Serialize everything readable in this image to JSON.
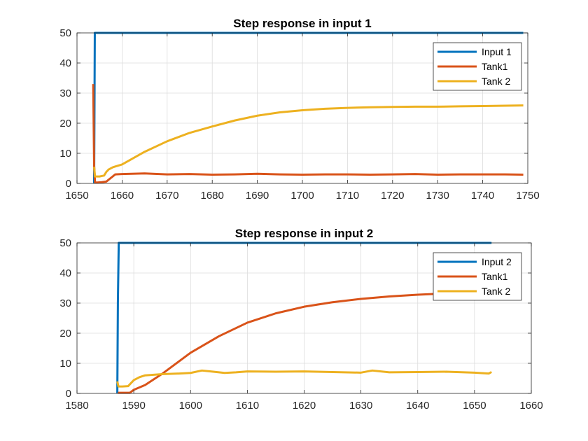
{
  "chart_data": [
    {
      "type": "line",
      "title": "Step response in input 1",
      "xlim": [
        1650,
        1750
      ],
      "ylim": [
        0,
        50
      ],
      "xticks": [
        1650,
        1660,
        1670,
        1680,
        1690,
        1700,
        1710,
        1720,
        1730,
        1740,
        1750
      ],
      "yticks": [
        0,
        10,
        20,
        30,
        40,
        50
      ],
      "grid": true,
      "legend_position": "top-right",
      "series": [
        {
          "name": "Input 1",
          "color": "#0072BD",
          "x": [
            1653.8,
            1653.9,
            1653.95,
            1749
          ],
          "y": [
            0,
            33,
            50,
            50
          ]
        },
        {
          "name": "Tank1",
          "color": "#D95319",
          "x": [
            1653.6,
            1653.8,
            1654.0,
            1654.5,
            1655.5,
            1656.5,
            1657.5,
            1658.5,
            1660,
            1665,
            1670,
            1675,
            1680,
            1685,
            1690,
            1695,
            1700,
            1705,
            1710,
            1715,
            1720,
            1725,
            1730,
            1735,
            1740,
            1745,
            1749
          ],
          "y": [
            33,
            6,
            0.3,
            0.3,
            0.4,
            0.6,
            1.8,
            3,
            3.1,
            3.3,
            3.0,
            3.1,
            2.9,
            3.0,
            3.2,
            3.0,
            2.9,
            3.0,
            3.0,
            2.9,
            3.0,
            3.1,
            2.9,
            3.0,
            3.0,
            3.0,
            2.9
          ]
        },
        {
          "name": "Tank 2",
          "color": "#EDB120",
          "x": [
            1653.8,
            1654.0,
            1655,
            1656,
            1656.5,
            1657,
            1658,
            1660,
            1665,
            1670,
            1675,
            1680,
            1685,
            1690,
            1695,
            1700,
            1705,
            1710,
            1715,
            1720,
            1725,
            1730,
            1735,
            1740,
            1745,
            1749
          ],
          "y": [
            5.5,
            2.3,
            2.3,
            2.6,
            3.8,
            4.6,
            5.4,
            6.3,
            10.5,
            14.0,
            16.8,
            18.9,
            20.9,
            22.5,
            23.6,
            24.3,
            24.8,
            25.1,
            25.3,
            25.4,
            25.5,
            25.5,
            25.6,
            25.7,
            25.8,
            25.9
          ]
        }
      ]
    },
    {
      "type": "line",
      "title": "Step response in input 2",
      "xlim": [
        1580,
        1660
      ],
      "ylim": [
        0,
        50
      ],
      "xticks": [
        1580,
        1590,
        1600,
        1610,
        1620,
        1630,
        1640,
        1650,
        1660
      ],
      "yticks": [
        0,
        10,
        20,
        30,
        40,
        50
      ],
      "grid": true,
      "legend_position": "top-right",
      "series": [
        {
          "name": "Input 2",
          "color": "#0072BD",
          "x": [
            1587.1,
            1587.2,
            1587.35,
            1653
          ],
          "y": [
            0,
            30,
            50,
            50
          ]
        },
        {
          "name": "Tank1",
          "color": "#D95319",
          "x": [
            1587.2,
            1589.3,
            1590,
            1592,
            1595,
            1600,
            1605,
            1610,
            1615,
            1620,
            1625,
            1630,
            1635,
            1640,
            1645,
            1650,
            1653
          ],
          "y": [
            0.2,
            0.2,
            1.2,
            2.8,
            6.5,
            13.5,
            19.0,
            23.5,
            26.6,
            28.8,
            30.3,
            31.4,
            32.2,
            32.8,
            33.2,
            33.6,
            33.8
          ]
        },
        {
          "name": "Tank 2",
          "color": "#EDB120",
          "x": [
            1587.1,
            1587.3,
            1588,
            1589,
            1590,
            1591,
            1592,
            1595,
            1598,
            1600,
            1602,
            1604,
            1606,
            1608,
            1610,
            1615,
            1620,
            1625,
            1630,
            1632,
            1635,
            1640,
            1645,
            1650,
            1652.5,
            1653
          ],
          "y": [
            4,
            2.3,
            2.3,
            2.4,
            4.4,
            5.4,
            6.0,
            6.4,
            6.6,
            6.8,
            7.6,
            7.2,
            6.8,
            7.0,
            7.3,
            7.2,
            7.3,
            7.1,
            6.9,
            7.6,
            7.0,
            7.1,
            7.2,
            6.9,
            6.6,
            7.1
          ]
        }
      ]
    }
  ]
}
